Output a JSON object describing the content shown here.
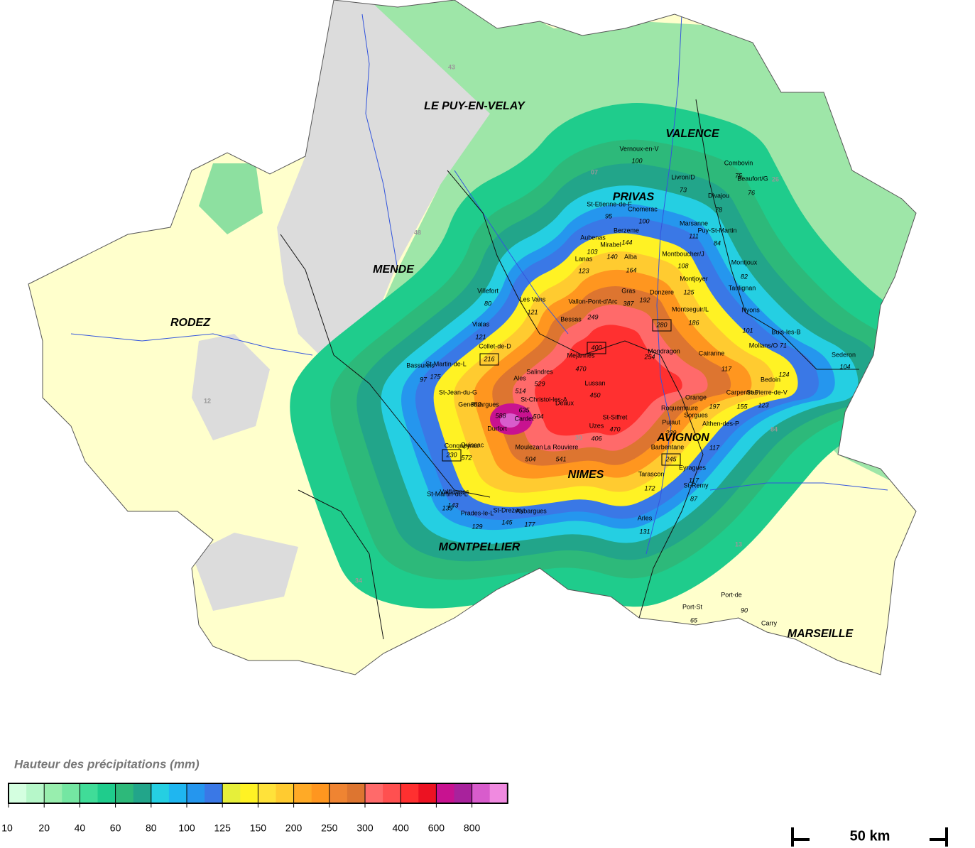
{
  "legend": {
    "title": "Hauteur des précipitations (mm)",
    "ticks": [
      10,
      20,
      40,
      60,
      80,
      100,
      125,
      150,
      200,
      250,
      300,
      400,
      600,
      800
    ],
    "colors": [
      "#d4ffe0",
      "#b6f7c9",
      "#98eeae",
      "#74e6a2",
      "#40dc98",
      "#1fcc8c",
      "#2db97a",
      "#22a58a",
      "#25cfe2",
      "#1fb6f0",
      "#2596ee",
      "#3a78e6",
      "#e6ef3a",
      "#fff224",
      "#ffe23a",
      "#ffcb30",
      "#ffaa26",
      "#ff961f",
      "#ef8432",
      "#dd7530",
      "#ff6a6a",
      "#ff5050",
      "#ff3030",
      "#ec1222",
      "#c81290",
      "#a8229c",
      "#d85ccc",
      "#f08ae0"
    ]
  },
  "cities": [
    "LE PUY-EN-VELAY",
    "VALENCE",
    "PRIVAS",
    "MENDE",
    "RODEZ",
    "AVIGNON",
    "NIMES",
    "MONTPELLIER",
    "MARSEILLE"
  ],
  "zones": [
    43,
    48,
    12,
    "07",
    26,
    30,
    34,
    13,
    84
  ],
  "stations": [
    {
      "name": "Vernoux-en-V",
      "value": 100
    },
    {
      "name": "St-Etienne-de-F",
      "value": 95
    },
    {
      "name": "Chomerac",
      "value": 100
    },
    {
      "name": "Livron/D",
      "value": 73
    },
    {
      "name": "Divajou",
      "value": 78
    },
    {
      "name": "Combovin",
      "value": 75
    },
    {
      "name": "Beaufort/G",
      "value": 76
    },
    {
      "name": "Marsanne",
      "value": 111
    },
    {
      "name": "Puy-St-Martin",
      "value": 84
    },
    {
      "name": "Berzeme",
      "value": 144
    },
    {
      "name": "Aubenas",
      "value": 103
    },
    {
      "name": "Mirabel",
      "value": 140
    },
    {
      "name": "Alba",
      "value": 164
    },
    {
      "name": "Montboucher/J",
      "value": 108
    },
    {
      "name": "Montjoux",
      "value": 82
    },
    {
      "name": "Lanas",
      "value": 123
    },
    {
      "name": "Montjoyer",
      "value": 125
    },
    {
      "name": "Taulignan"
    },
    {
      "name": "Villefort",
      "value": 80
    },
    {
      "name": "Les Vans",
      "value": 121
    },
    {
      "name": "Vallon-Pont-d'Arc",
      "value": 249
    },
    {
      "name": "Bessas"
    },
    {
      "name": "Gras",
      "value": 387
    },
    {
      "name": "Donzere",
      "value": 192
    },
    {
      "name": "Nyons",
      "value": 101
    },
    {
      "name": "Buis-les-B"
    },
    {
      "name": "Vialas",
      "value": 121
    },
    {
      "name": "Collet-de-D",
      "value": 216,
      "boxed": true
    },
    {
      "name": "Mejannes",
      "value": 470
    },
    {
      "name": "Lussan",
      "value": 450
    },
    {
      "name": "Salindres",
      "value": 529
    },
    {
      "name": "Ales",
      "value": 514
    },
    {
      "name": "St-Martin-de-L",
      "value": 175
    },
    {
      "name": "Bassurels",
      "value": 97
    },
    {
      "name": "Sederon",
      "value": 104
    },
    {
      "name": "Mollans/O",
      "value": 71
    },
    {
      "name": "Bedoin",
      "value": 124
    },
    {
      "name": "Carpentras",
      "value": 155
    },
    {
      "name": "St-Pierre-de-V",
      "value": 123
    },
    {
      "name": "Orange",
      "value": 197
    },
    {
      "name": "Cairanne",
      "value": 117
    },
    {
      "name": "Mondragon",
      "value": 254
    },
    {
      "name": "Roquemaure"
    },
    {
      "name": "Sorgues"
    },
    {
      "name": "Pujaut",
      "value": 239
    },
    {
      "name": "Althen-des-P"
    },
    {
      "name": "St-Siffret",
      "value": 470
    },
    {
      "name": "Uzes",
      "value": 406
    },
    {
      "name": "Cardet",
      "value": 635
    },
    {
      "name": "Genebrargues",
      "value": 588
    },
    {
      "name": "St-Jean-du-G",
      "value": 362
    },
    {
      "name": "St-Christol-les-A",
      "value": 504
    },
    {
      "name": "Deaux"
    },
    {
      "name": "Durfort"
    },
    {
      "name": "Quissac"
    },
    {
      "name": "Moulezan",
      "value": 504
    },
    {
      "name": "La Rouviere",
      "value": 541
    },
    {
      "name": "Conqueyrac",
      "value": 572
    },
    {
      "name": "Barbentane",
      "value": 117
    },
    {
      "name": "Eyragues",
      "value": 117
    },
    {
      "name": "St-Remy",
      "value": 87
    },
    {
      "name": "Tarascon",
      "value": 172
    },
    {
      "name": "Arles",
      "value": 131
    },
    {
      "name": "St-Martin-de-L",
      "value": 139
    },
    {
      "name": "Valflaunes",
      "value": 143
    },
    {
      "name": "Prades-le-L",
      "value": 129
    },
    {
      "name": "St-Drezery",
      "value": 145
    },
    {
      "name": "Aubargues",
      "value": 177
    },
    {
      "name": "Port-de",
      "value": 90
    },
    {
      "name": "Port-St",
      "value": 65
    },
    {
      "name": "Carry"
    },
    {
      "name": "Montseguir/L",
      "value": 186
    }
  ],
  "boxes": [
    400,
    230,
    245,
    280
  ],
  "scale": "50 km"
}
